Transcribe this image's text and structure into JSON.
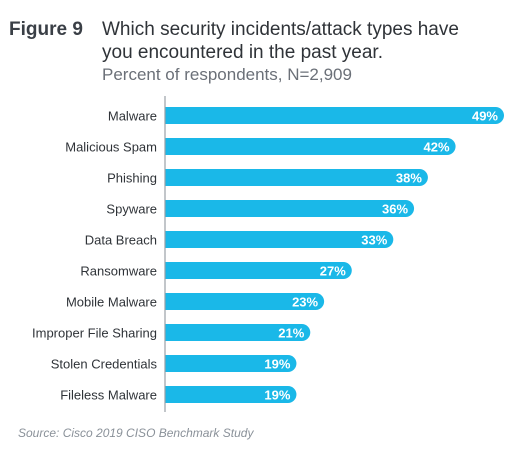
{
  "figure": {
    "label": "Figure 9",
    "title_line1": "Which security incidents/attack types have",
    "title_line2": "you encountered in the past year.",
    "subtitle": "Percent of respondents, N=2,909",
    "source": "Source: Cisco 2019 CISO Benchmark Study"
  },
  "colors": {
    "bar": "#1ab8e8",
    "axis": "#9aa0a6",
    "label": "#2f3338"
  },
  "chart_data": {
    "type": "bar",
    "orientation": "horizontal",
    "title": "Which security incidents/attack types have you encountered in the past year.",
    "subtitle": "Percent of respondents, N=2,909",
    "categories": [
      "Malware",
      "Malicious Spam",
      "Phishing",
      "Spyware",
      "Data Breach",
      "Ransomware",
      "Mobile Malware",
      "Improper File Sharing",
      "Stolen Credentials",
      "Fileless Malware"
    ],
    "values": [
      49,
      42,
      38,
      36,
      33,
      27,
      23,
      21,
      19,
      19
    ],
    "value_labels": [
      "49%",
      "42%",
      "38%",
      "36%",
      "33%",
      "27%",
      "23%",
      "21%",
      "19%",
      "19%"
    ],
    "xlim": [
      0,
      49
    ],
    "grid": false,
    "legend": "none"
  }
}
